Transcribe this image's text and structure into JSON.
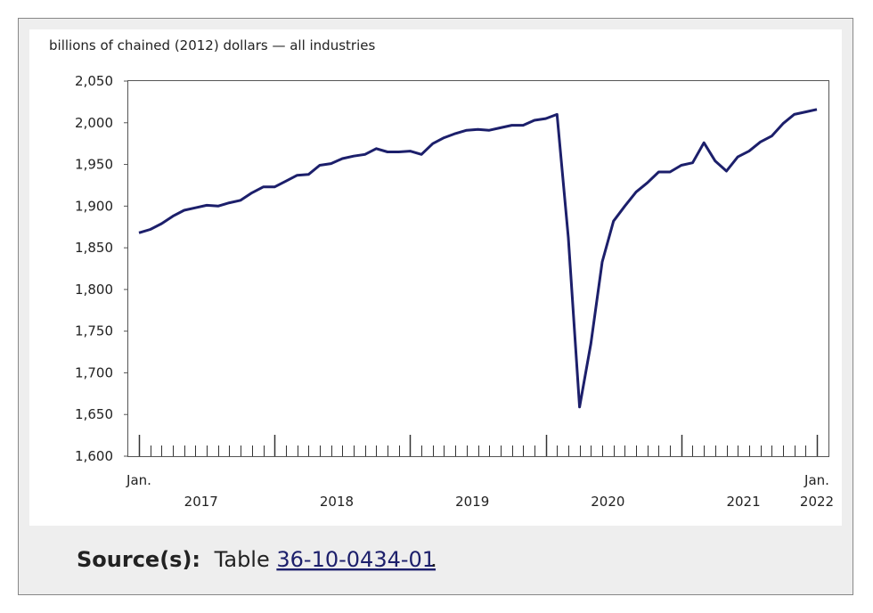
{
  "chart_data": {
    "type": "line",
    "y_axis_label": "billions of chained (2012) dollars — all industries",
    "categories": [
      "Jan.",
      null,
      null,
      null,
      null,
      null,
      null,
      null,
      null,
      null,
      null,
      null,
      null,
      null,
      null,
      null,
      null,
      null,
      null,
      null,
      null,
      null,
      null,
      null,
      null,
      null,
      null,
      null,
      null,
      null,
      null,
      null,
      null,
      null,
      null,
      null,
      null,
      null,
      null,
      null,
      null,
      null,
      null,
      null,
      null,
      null,
      null,
      null,
      null,
      null,
      null,
      null,
      null,
      null,
      null,
      null,
      null,
      null,
      null,
      null,
      "Jan."
    ],
    "year_labels": [
      "2017",
      "2018",
      "2019",
      "2020",
      "2021",
      "2022"
    ],
    "series": [
      {
        "color": "#1c1f6b",
        "values": [
          1868,
          1872,
          1879,
          1888,
          1895,
          1898,
          1901,
          1900,
          1904,
          1907,
          1916,
          1923,
          1923,
          1930,
          1937,
          1938,
          1949,
          1951,
          1957,
          1960,
          1962,
          1969,
          1965,
          1965,
          1966,
          1962,
          1975,
          1982,
          1987,
          1991,
          1992,
          1991,
          1994,
          1997,
          1997,
          2003,
          2005,
          2010,
          1862,
          1659,
          1735,
          1833,
          1882,
          1900,
          1917,
          1928,
          1941,
          1941,
          1949,
          1952,
          1976,
          1954,
          1942,
          1959,
          1966,
          1977,
          1984,
          1999,
          2010,
          2013,
          2016
        ]
      }
    ],
    "ylim": [
      1600,
      2050
    ],
    "yticks": [
      {
        "value": 1600,
        "label": "1,600"
      },
      {
        "value": 1650,
        "label": "1,650"
      },
      {
        "value": 1700,
        "label": "1,700"
      },
      {
        "value": 1750,
        "label": "1,750"
      },
      {
        "value": 1800,
        "label": "1,800"
      },
      {
        "value": 1850,
        "label": "1,850"
      },
      {
        "value": 1900,
        "label": "1,900"
      },
      {
        "value": 1950,
        "label": "1,950"
      },
      {
        "value": 2000,
        "label": "2,000"
      },
      {
        "value": 2050,
        "label": "2,050"
      }
    ],
    "grid": false
  },
  "source": {
    "label": "Source(s):",
    "text": "Table",
    "link": "36-10-0434-01",
    "end": "."
  }
}
